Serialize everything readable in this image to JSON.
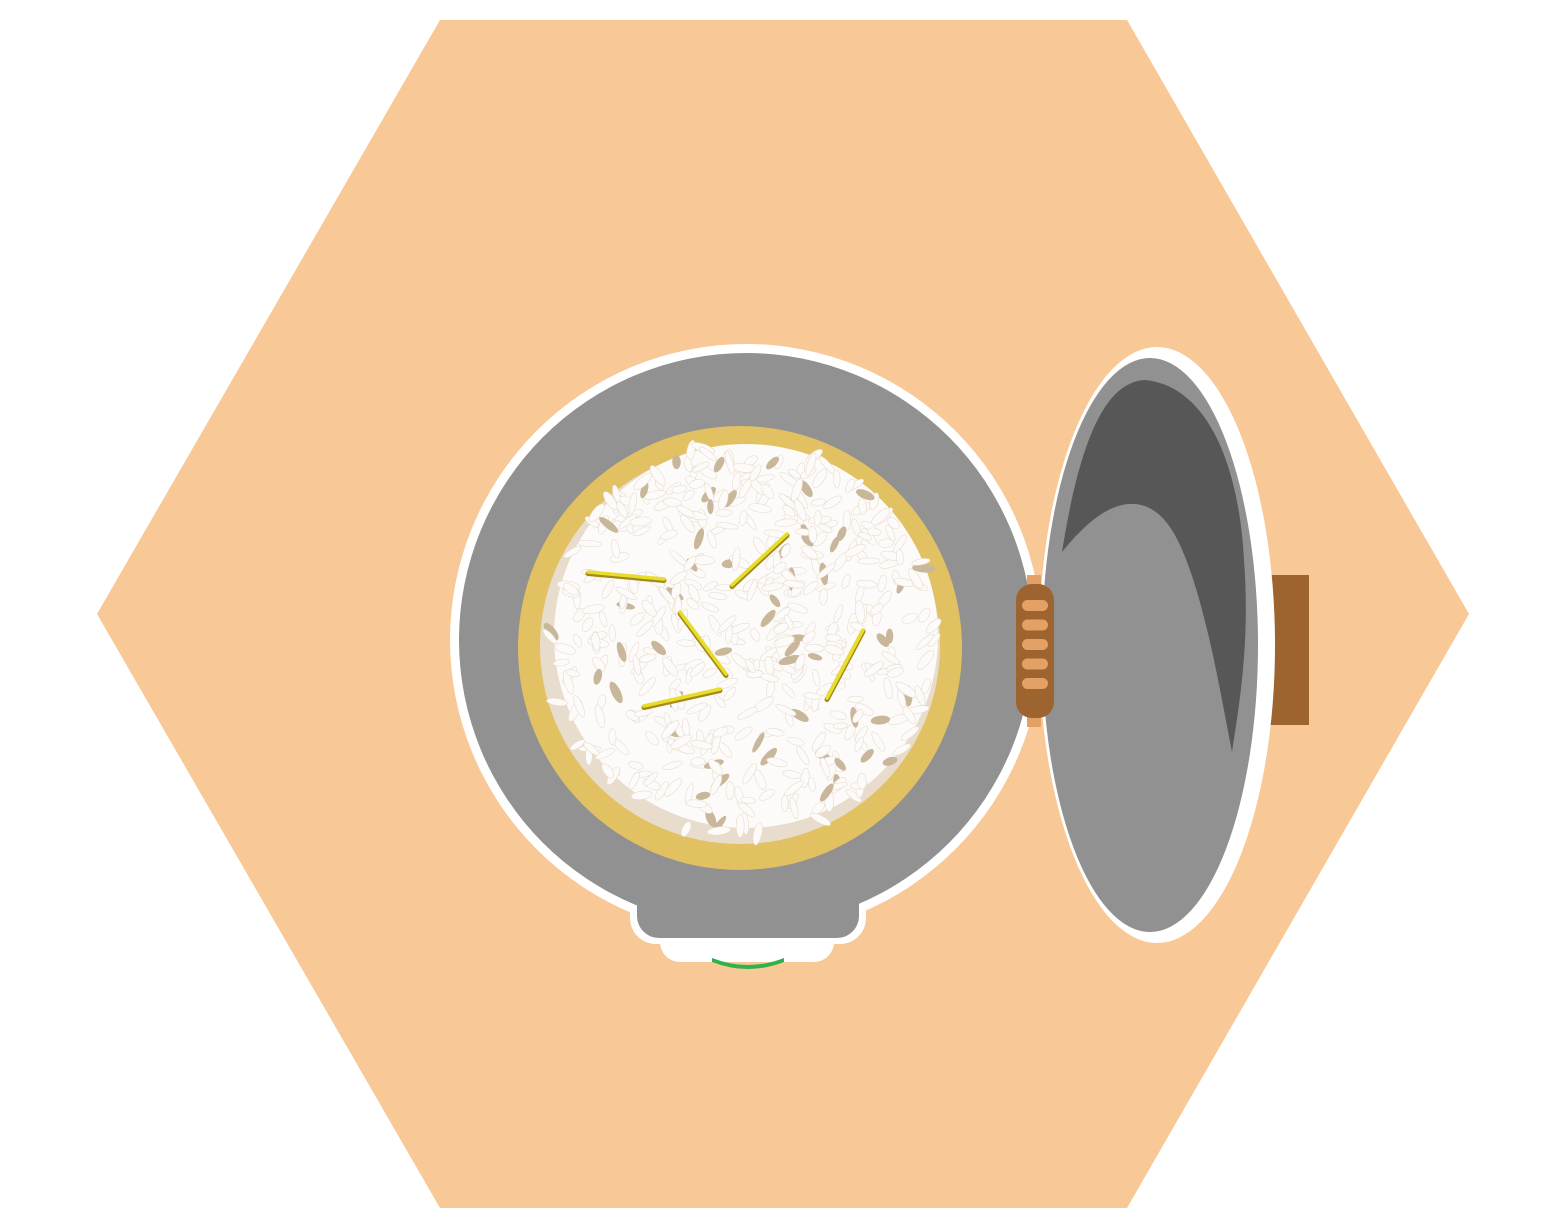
{
  "scene": {
    "subject": "rice-cooker-open-top-view",
    "colors": {
      "background": "#ffffff",
      "hexagon": "#f8c896",
      "outline": "#ffffff",
      "body_gray": "#919191",
      "lid_inner_dark": "#575757",
      "pot_gold": "#e2c163",
      "rice": "#fdfbfa",
      "rice_shadow": "#e8dccd",
      "rice_grain_shade": "#c9b79b",
      "hinge_brown": "#9e6430",
      "hinge_light": "#e3a165",
      "handle_brown": "#9e6430",
      "indicator_green": "#2fb24a",
      "herb_yellow": "#e8dc2c",
      "herb_dark": "#a48a16"
    },
    "icons": [
      "hexagon-background",
      "cooker-body",
      "inner-pot",
      "rice-mound",
      "herb-garnish",
      "hinge",
      "open-lid",
      "lid-handle",
      "control-panel",
      "power-indicator-light"
    ]
  }
}
